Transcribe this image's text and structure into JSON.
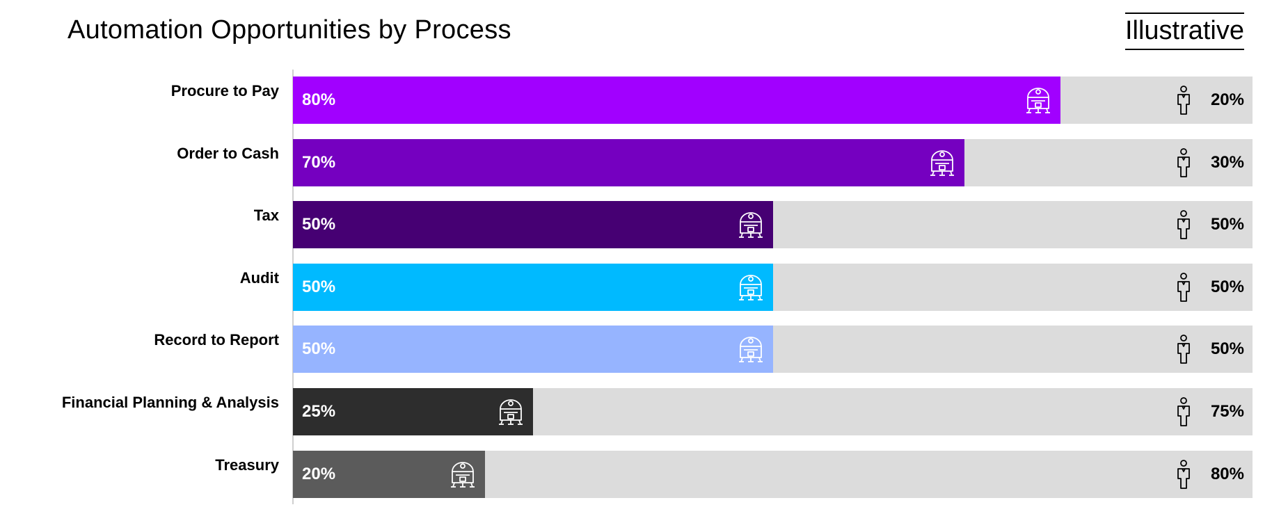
{
  "header": {
    "title": "Automation Opportunities by Process",
    "badge": "Illustrative"
  },
  "chart_data": {
    "type": "bar",
    "orientation": "horizontal",
    "stacked": true,
    "title": "Automation Opportunities by Process",
    "categories": [
      "Procure to Pay",
      "Order to Cash",
      "Tax",
      "Audit",
      "Record to Report",
      "Financial Planning & Analysis",
      "Treasury"
    ],
    "series": [
      {
        "values": [
          80,
          70,
          50,
          50,
          50,
          25,
          20
        ],
        "icon": "robot-icon"
      },
      {
        "values": [
          20,
          30,
          50,
          50,
          50,
          75,
          80
        ],
        "icon": "person-icon"
      }
    ],
    "value_labels": {
      "automated": [
        "80%",
        "70%",
        "50%",
        "50%",
        "50%",
        "25%",
        "20%"
      ],
      "manual": [
        "20%",
        "30%",
        "50%",
        "50%",
        "50%",
        "75%",
        "80%"
      ]
    },
    "bar_colors": [
      "#a100ff",
      "#7500c0",
      "#460073",
      "#00baff",
      "#96b4ff",
      "#2d2d2d",
      "#5b5b5b"
    ],
    "track_color": "#dcdcdc",
    "xlim": [
      0,
      100
    ],
    "grid": false,
    "legend": "none"
  }
}
